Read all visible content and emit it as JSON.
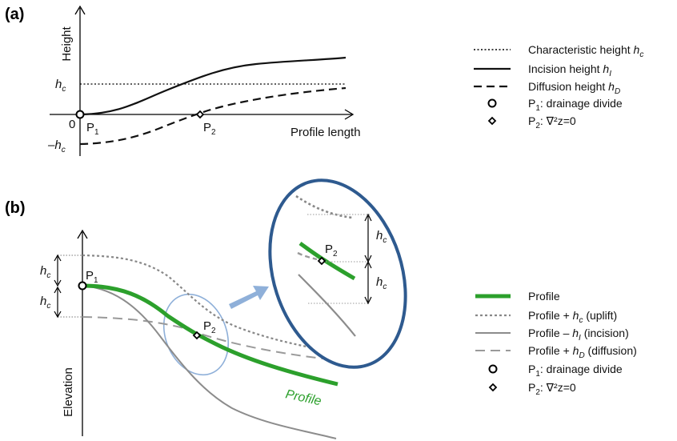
{
  "panel_a": {
    "label": "(a)",
    "y_axis_label": "Height",
    "x_axis_label": "Profile length",
    "tick_hc": "h",
    "tick_hc_sub": "c",
    "tick_minus_hc": "–h",
    "tick_minus_hc_sub": "c",
    "tick_zero": "0",
    "p1_label": "P",
    "p1_sub": "1",
    "p2_label": "P",
    "p2_sub": "2"
  },
  "panel_b": {
    "label": "(b)",
    "y_axis_label": "Elevation",
    "hc_label": "h",
    "hc_sub": "c",
    "p1_label": "P",
    "p1_sub": "1",
    "p2_label": "P",
    "p2_sub": "2",
    "profile_label": "Profile",
    "zoom_hc_label": "h",
    "zoom_hc_sub": "c",
    "zoom_p2_label": "P",
    "zoom_p2_sub": "2"
  },
  "legend_a": [
    {
      "text": "Characteristic height ",
      "var": "h",
      "sub": "c"
    },
    {
      "text": "Incision height ",
      "var": "h",
      "sub": "I"
    },
    {
      "text": "Diffusion height ",
      "var": "h",
      "sub": "D"
    },
    {
      "text": "P",
      "sub2": "1",
      "tail": ": drainage divide"
    },
    {
      "text": "P",
      "sub2": "2",
      "tail": ": ∇²z=0"
    }
  ],
  "legend_b": [
    {
      "text": "Profile"
    },
    {
      "text": "Profile + ",
      "var": "h",
      "sub": "c",
      "tail": " (uplift)"
    },
    {
      "text": "Profile – ",
      "var": "h",
      "sub": "I",
      "tail": " (incision)"
    },
    {
      "text": "Profile + ",
      "var": "h",
      "sub": "D",
      "tail": " (diffusion)"
    },
    {
      "text": "P",
      "sub2": "1",
      "tail": ": drainage divide"
    },
    {
      "text": "P",
      "sub2": "2",
      "tail": ": ∇²z=0"
    }
  ],
  "colors": {
    "profile_green": "#2ca02c",
    "uplift_gray": "#888888",
    "incision_gray": "#8c8c8c",
    "diffusion_gray": "#9a9a9a",
    "ellipse_light": "#8fb0d9",
    "ellipse_dark": "#2e5a8f",
    "arrow_blue": "#8fb0d9"
  }
}
